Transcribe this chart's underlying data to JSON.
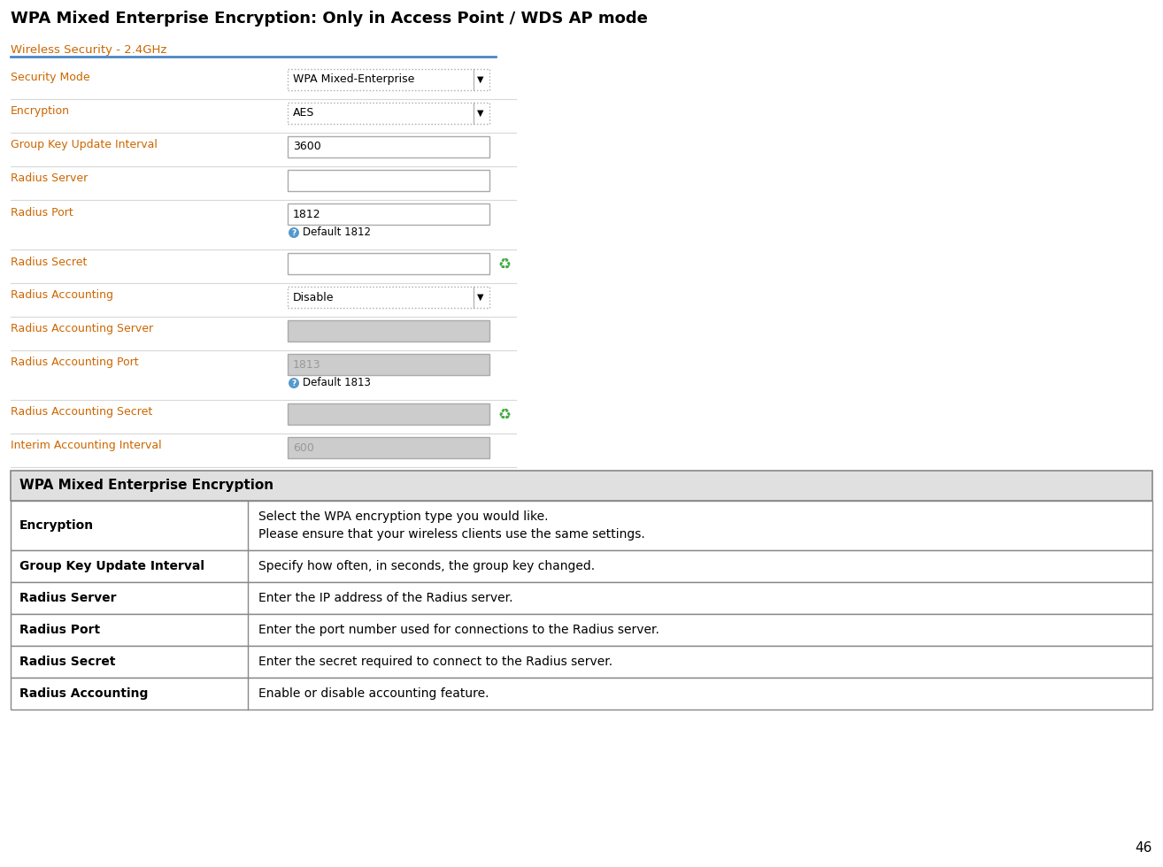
{
  "title": "WPA Mixed Enterprise Encryption: Only in Access Point / WDS AP mode",
  "title_fontsize": 13,
  "page_number": "46",
  "section_title": "Wireless Security - 2.4GHz",
  "section_title_color": "#cc6600",
  "separator_color": "#4a86c8",
  "form_rows": [
    {
      "label": "Security Mode",
      "value": "WPA Mixed-Enterprise",
      "type": "dropdown",
      "enabled": true,
      "hint": null
    },
    {
      "label": "Encryption",
      "value": "AES",
      "type": "dropdown",
      "enabled": true,
      "hint": null
    },
    {
      "label": "Group Key Update Interval",
      "value": "3600",
      "type": "input",
      "enabled": true,
      "hint": null
    },
    {
      "label": "Radius Server",
      "value": "",
      "type": "input",
      "enabled": true,
      "hint": null
    },
    {
      "label": "Radius Port",
      "value": "1812",
      "type": "input_hint",
      "enabled": true,
      "hint": "Default 1812"
    },
    {
      "label": "Radius Secret",
      "value": "",
      "type": "input_icon",
      "enabled": true,
      "hint": null
    },
    {
      "label": "Radius Accounting",
      "value": "Disable",
      "type": "dropdown",
      "enabled": true,
      "hint": null
    },
    {
      "label": "Radius Accounting Server",
      "value": "",
      "type": "input",
      "enabled": false,
      "hint": null
    },
    {
      "label": "Radius Accounting Port",
      "value": "1813",
      "type": "input_hint",
      "enabled": false,
      "hint": "Default 1813"
    },
    {
      "label": "Radius Accounting Secret",
      "value": "",
      "type": "input_icon",
      "enabled": false,
      "hint": null
    },
    {
      "label": "Interim Accounting Interval",
      "value": "600",
      "type": "input",
      "enabled": false,
      "hint": null
    }
  ],
  "table_header": "WPA Mixed Enterprise Encryption",
  "table_header_bg": "#e0e0e0",
  "table_border_color": "#888888",
  "table_rows": [
    {
      "term": "Encryption",
      "description": "Select the WPA encryption type you would like.\nPlease ensure that your wireless clients use the same settings."
    },
    {
      "term": "Group Key Update Interval",
      "description": "Specify how often, in seconds, the group key changed."
    },
    {
      "term": "Radius Server",
      "description": "Enter the IP address of the Radius server."
    },
    {
      "term": "Radius Port",
      "description": "Enter the port number used for connections to the Radius server."
    },
    {
      "term": "Radius Secret",
      "description": "Enter the secret required to connect to the Radius server."
    },
    {
      "term": "Radius Accounting",
      "description": "Enable or disable accounting feature."
    }
  ],
  "label_color": "#cc6600",
  "input_border_color": "#aaaaaa",
  "input_bg_enabled": "#ffffff",
  "input_bg_disabled": "#cccccc"
}
